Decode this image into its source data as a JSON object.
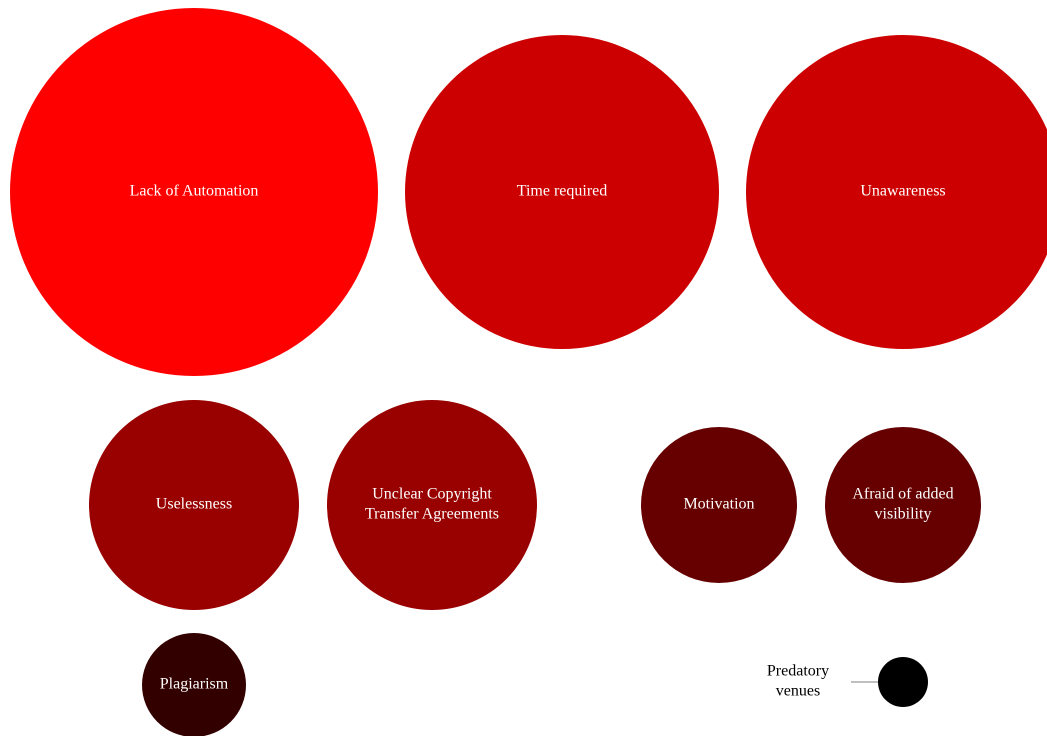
{
  "chart_data": {
    "type": "bubble",
    "title": "",
    "legend": "none",
    "series": [
      {
        "name": "",
        "items": [
          {
            "label": [
              "Lack of Automation"
            ],
            "color": "#ff0000"
          },
          {
            "label": [
              "Time required"
            ],
            "color": "#cc0000"
          },
          {
            "label": [
              "Unawareness"
            ],
            "color": "#cc0000"
          },
          {
            "label": [
              "Uselessness"
            ],
            "color": "#990000"
          },
          {
            "label": [
              "Unclear Copyright",
              "Transfer Agreements"
            ],
            "color": "#990000"
          },
          {
            "label": [
              "Motivation"
            ],
            "color": "#660000"
          },
          {
            "label": [
              "Afraid of added",
              "visibility"
            ],
            "color": "#660000"
          },
          {
            "label": [
              "Plagiarism"
            ],
            "color": "#330000"
          },
          {
            "label": [
              "Predatory",
              "venues"
            ],
            "color": "#000000",
            "callout": true
          }
        ]
      }
    ]
  }
}
